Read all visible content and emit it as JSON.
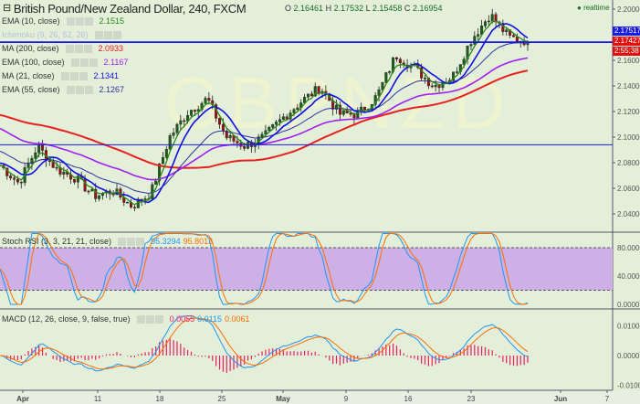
{
  "header": {
    "title": "British Pound/New Zealand Dollar, 240, FXCM",
    "open_label": "O",
    "open": "2.16461",
    "high_label": "H",
    "high": "2.17532",
    "low_label": "L",
    "low": "2.15458",
    "close_label": "C",
    "close": "2.16954",
    "realtime": "realtime",
    "watermark": "GBPNZD"
  },
  "indicators": [
    {
      "label": "EMA (10, close)",
      "value": "2.1515",
      "color": "#2a8a1a"
    },
    {
      "label": "Ichimoku (9, 26, 52, 26)",
      "value": "",
      "color": "#c8d0e8"
    },
    {
      "label": "MA (200, close)",
      "value": "2.0933",
      "color": "#e82020"
    },
    {
      "label": "EMA (100, close)",
      "value": "2.1167",
      "color": "#a020f0"
    },
    {
      "label": "MA (21, close)",
      "value": "2.1341",
      "color": "#1010e0"
    },
    {
      "label": "EMA (55, close)",
      "value": "2.1267",
      "color": "#3030a0"
    }
  ],
  "stoch": {
    "label": "Stoch RSI (3, 3, 21, 21, close)",
    "k": "95.3294",
    "d": "95.8013",
    "k_color": "#2196f3",
    "d_color": "#ff6d00"
  },
  "macd": {
    "label": "MACD (12, 26, close, 9, false, true)",
    "hist": "0.0055",
    "macd": "0.0115",
    "signal": "0.0061",
    "hist_color": "#e91e63",
    "macd_color": "#2196f3",
    "signal_color": "#ff6d00"
  },
  "price_tags": {
    "blue": "2.17517",
    "red": "2.17427",
    "timer": "2:55:38"
  },
  "chart_data": {
    "type": "candlestick",
    "price_axis": {
      "ticks": [
        "2.20000",
        "2.16000",
        "2.14000",
        "2.12000",
        "2.10000",
        "2.08000",
        "2.06000",
        "2.04000"
      ],
      "range": [
        2.03,
        2.203
      ]
    },
    "stoch_axis": {
      "ticks": [
        "80.0000",
        "40.0000",
        "0.0000"
      ],
      "band": [
        20,
        80
      ]
    },
    "macd_axis": {
      "ticks": [
        "0.0100",
        "0.0000",
        "-0.0100"
      ]
    },
    "x_ticks": [
      "Apr",
      "11",
      "18",
      "25",
      "May",
      "9",
      "16",
      "23",
      "Jun",
      "7"
    ],
    "horizontal_lines": [
      2.1742,
      2.094
    ],
    "close_path": [
      2.078,
      2.064,
      2.093,
      2.075,
      2.068,
      2.054,
      2.058,
      2.046,
      2.056,
      2.1,
      2.12,
      2.13,
      2.1,
      2.093,
      2.1,
      2.115,
      2.128,
      2.139,
      2.118,
      2.118,
      2.132,
      2.164,
      2.154,
      2.14,
      2.147,
      2.176,
      2.196,
      2.178,
      2.175
    ]
  }
}
